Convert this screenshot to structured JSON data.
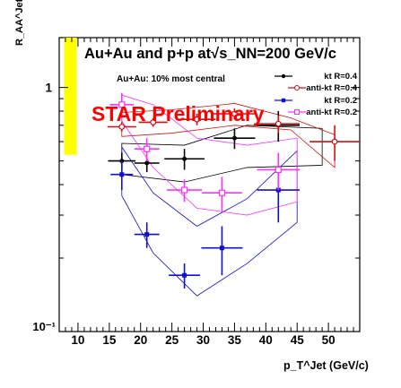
{
  "chart_data": {
    "type": "scatter",
    "title": "Au+Au and p+p at√s_NN=200 GeV/c",
    "subtitle": "Au+Au: 10% most central",
    "watermark": "STAR Preliminary",
    "ylabel": "R_AA^Jet",
    "xlabel": "p_T^Jet (GeV/c)",
    "x_range": [
      7,
      55
    ],
    "y_range": [
      0.1,
      1.6
    ],
    "y_scale": "log",
    "x_ticks": [
      "10",
      "15",
      "20",
      "25",
      "30",
      "35",
      "40",
      "45",
      "50"
    ],
    "y_ticks": [
      "1",
      "10⁻¹"
    ],
    "legend_position": "top-right",
    "colors": {
      "kt04": "#000000",
      "antikt04": "#d01010",
      "kt02": "#1010d0",
      "antikt02": "#ff30ff",
      "norm_band": "#ffff00"
    },
    "normalization_band": {
      "x": 8.5,
      "y_low": 0.53,
      "y_high": 1.6
    },
    "series": [
      {
        "name": "kt R=0.4",
        "marker": "filled-circle",
        "points": [
          {
            "x": 17,
            "y": 0.5,
            "xerr": 2.2,
            "yerr": 0.04
          },
          {
            "x": 21,
            "y": 0.49,
            "xerr": 2.0,
            "yerr": 0.04
          },
          {
            "x": 27,
            "y": 0.51,
            "xerr": 3.2,
            "yerr": 0.05
          },
          {
            "x": 35,
            "y": 0.62,
            "xerr": 3.3,
            "yerr": 0.06
          },
          {
            "x": 42,
            "y": 0.7,
            "xerr": 3.4,
            "yerr": 0.1
          }
        ],
        "band_upper": [
          {
            "x": 17,
            "y": 0.59
          },
          {
            "x": 27,
            "y": 0.58
          },
          {
            "x": 37,
            "y": 0.7
          },
          {
            "x": 49,
            "y": 0.68
          }
        ],
        "band_lower": [
          {
            "x": 17,
            "y": 0.44
          },
          {
            "x": 27,
            "y": 0.41
          },
          {
            "x": 37,
            "y": 0.47
          },
          {
            "x": 49,
            "y": 0.48
          }
        ]
      },
      {
        "name": "anti-kt R=0.4",
        "marker": "open-circle",
        "points": [
          {
            "x": 17,
            "y": 0.69,
            "xerr": 2.3,
            "yerr": 0.03
          },
          {
            "x": 22,
            "y": 0.72,
            "xerr": 2.3,
            "yerr": 0.03
          },
          {
            "x": 29,
            "y": 0.74,
            "xerr": 3.0,
            "yerr": 0.04
          },
          {
            "x": 35,
            "y": 0.78,
            "xerr": 3.6,
            "yerr": 0.04
          },
          {
            "x": 42,
            "y": 0.71,
            "xerr": 3.4,
            "yerr": 0.06
          },
          {
            "x": 51,
            "y": 0.6,
            "xerr": 4.0,
            "yerr": 0.1
          }
        ],
        "band_upper": [
          {
            "x": 17,
            "y": 0.79
          },
          {
            "x": 25,
            "y": 0.81
          },
          {
            "x": 35,
            "y": 0.86
          },
          {
            "x": 44,
            "y": 0.75
          },
          {
            "x": 51,
            "y": 0.64
          }
        ],
        "band_lower": [
          {
            "x": 17,
            "y": 0.63
          },
          {
            "x": 25,
            "y": 0.65
          },
          {
            "x": 35,
            "y": 0.7
          },
          {
            "x": 44,
            "y": 0.67
          },
          {
            "x": 51,
            "y": 0.47
          }
        ]
      },
      {
        "name": "kt R=0.2",
        "marker": "filled-square",
        "points": [
          {
            "x": 17,
            "y": 0.44,
            "xerr": 1.8,
            "yerr": 0.06
          },
          {
            "x": 21,
            "y": 0.25,
            "xerr": 2.0,
            "yerr": 0.03
          },
          {
            "x": 27,
            "y": 0.17,
            "xerr": 2.5,
            "yerr": 0.02
          },
          {
            "x": 33,
            "y": 0.22,
            "xerr": 3.3,
            "yerr": 0.05
          },
          {
            "x": 42,
            "y": 0.38,
            "xerr": 3.4,
            "yerr": 0.1
          }
        ],
        "band_upper": [
          {
            "x": 17,
            "y": 0.57
          },
          {
            "x": 22,
            "y": 0.37
          },
          {
            "x": 29,
            "y": 0.27
          },
          {
            "x": 37,
            "y": 0.35
          },
          {
            "x": 45,
            "y": 0.55
          }
        ],
        "band_lower": [
          {
            "x": 17,
            "y": 0.36
          },
          {
            "x": 22,
            "y": 0.21
          },
          {
            "x": 29,
            "y": 0.14
          },
          {
            "x": 37,
            "y": 0.19
          },
          {
            "x": 45,
            "y": 0.28
          }
        ]
      },
      {
        "name": "anti-kt R=0.2",
        "marker": "open-square",
        "points": [
          {
            "x": 17,
            "y": 0.85,
            "xerr": 1.9,
            "yerr": 0.1
          },
          {
            "x": 21,
            "y": 0.56,
            "xerr": 2.0,
            "yerr": 0.06
          },
          {
            "x": 27,
            "y": 0.38,
            "xerr": 2.8,
            "yerr": 0.04
          },
          {
            "x": 33,
            "y": 0.37,
            "xerr": 3.2,
            "yerr": 0.06
          },
          {
            "x": 42,
            "y": 0.46,
            "xerr": 3.4,
            "yerr": 0.08
          }
        ],
        "band_upper": [
          {
            "x": 17,
            "y": 0.93
          },
          {
            "x": 22,
            "y": 0.85
          },
          {
            "x": 29,
            "y": 0.62
          },
          {
            "x": 37,
            "y": 0.58
          },
          {
            "x": 45,
            "y": 0.62
          }
        ],
        "band_lower": [
          {
            "x": 17,
            "y": 0.73
          },
          {
            "x": 22,
            "y": 0.47
          },
          {
            "x": 29,
            "y": 0.32
          },
          {
            "x": 37,
            "y": 0.3
          },
          {
            "x": 45,
            "y": 0.34
          }
        ]
      }
    ]
  }
}
